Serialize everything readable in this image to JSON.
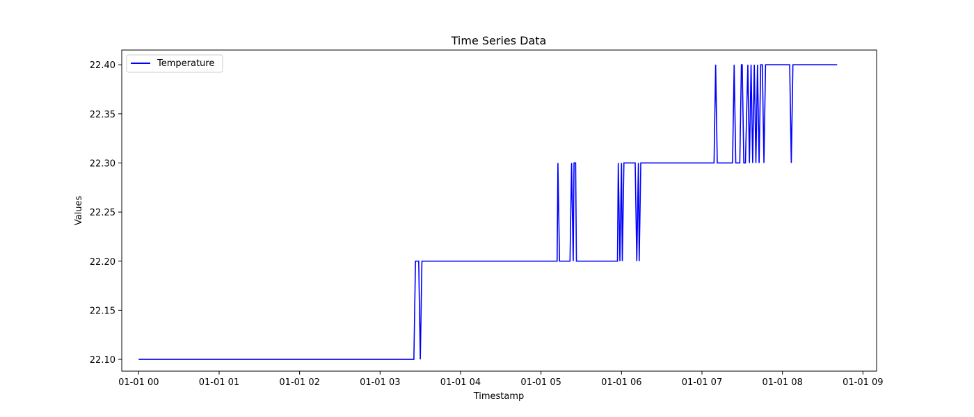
{
  "chart_data": {
    "type": "line",
    "title": "Time Series Data",
    "xlabel": "Timestamp",
    "ylabel": "Values",
    "x_unit": "hours",
    "xlim": [
      -0.21,
      9.17
    ],
    "ylim": [
      22.088,
      22.415
    ],
    "x_ticks": [
      {
        "x": 0,
        "label": "01-01 00"
      },
      {
        "x": 1,
        "label": "01-01 01"
      },
      {
        "x": 2,
        "label": "01-01 02"
      },
      {
        "x": 3,
        "label": "01-01 03"
      },
      {
        "x": 4,
        "label": "01-01 04"
      },
      {
        "x": 5,
        "label": "01-01 05"
      },
      {
        "x": 6,
        "label": "01-01 06"
      },
      {
        "x": 7,
        "label": "01-01 07"
      },
      {
        "x": 8,
        "label": "01-01 08"
      },
      {
        "x": 9,
        "label": "01-01 09"
      }
    ],
    "y_ticks": [
      {
        "y": 22.1,
        "label": "22.10"
      },
      {
        "y": 22.15,
        "label": "22.15"
      },
      {
        "y": 22.2,
        "label": "22.20"
      },
      {
        "y": 22.25,
        "label": "22.25"
      },
      {
        "y": 22.3,
        "label": "22.30"
      },
      {
        "y": 22.35,
        "label": "22.35"
      },
      {
        "y": 22.4,
        "label": "22.40"
      }
    ],
    "legend": {
      "position": "top-left"
    },
    "grid": false,
    "series": [
      {
        "name": "Temperature",
        "color": "#0000ff",
        "x": [
          0,
          3.42,
          3.44,
          3.48,
          3.5,
          3.52,
          5.2,
          5.21,
          5.23,
          5.36,
          5.38,
          5.4,
          5.41,
          5.43,
          5.44,
          5.46,
          5.48,
          5.95,
          5.96,
          5.98,
          6.0,
          6.01,
          6.03,
          6.05,
          6.07,
          6.17,
          6.19,
          6.21,
          6.22,
          6.24,
          7.15,
          7.17,
          7.19,
          7.38,
          7.4,
          7.42,
          7.47,
          7.49,
          7.5,
          7.52,
          7.54,
          7.57,
          7.59,
          7.61,
          7.63,
          7.65,
          7.67,
          7.69,
          7.71,
          7.73,
          7.75,
          7.77,
          7.79,
          7.81,
          8.09,
          8.11,
          8.13,
          8.68
        ],
        "values": [
          22.1,
          22.1,
          22.2,
          22.2,
          22.1,
          22.2,
          22.2,
          22.3,
          22.2,
          22.2,
          22.3,
          22.2,
          22.3,
          22.3,
          22.2,
          22.2,
          22.2,
          22.2,
          22.3,
          22.2,
          22.3,
          22.2,
          22.3,
          22.3,
          22.3,
          22.3,
          22.2,
          22.3,
          22.2,
          22.3,
          22.3,
          22.4,
          22.3,
          22.3,
          22.4,
          22.3,
          22.3,
          22.4,
          22.4,
          22.3,
          22.3,
          22.4,
          22.3,
          22.4,
          22.3,
          22.4,
          22.3,
          22.4,
          22.3,
          22.4,
          22.4,
          22.3,
          22.4,
          22.4,
          22.4,
          22.3,
          22.4,
          22.4
        ]
      }
    ]
  }
}
